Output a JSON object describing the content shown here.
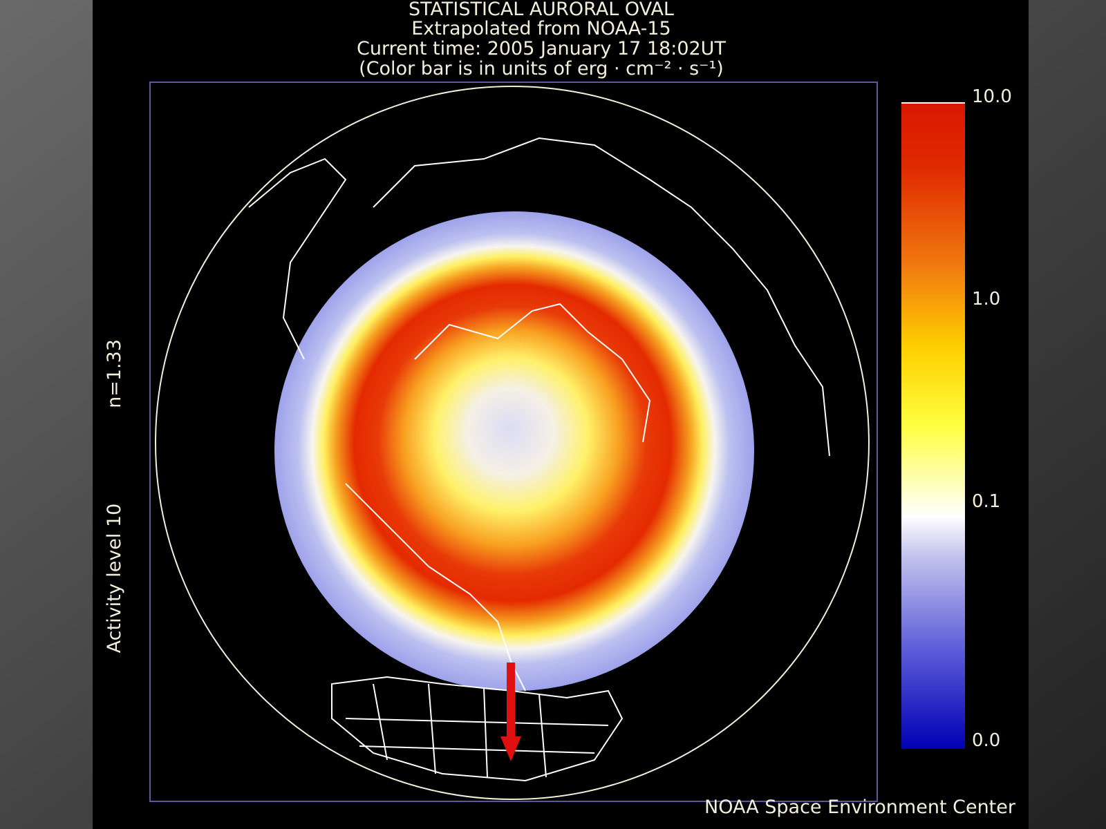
{
  "title": {
    "lines": [
      "STATISTICAL AURORAL OVAL",
      "Extrapolated from NOAA-15",
      "Current time: 2005 January 17 18:02UT",
      "(Color bar is in units of erg · cm⁻² · s⁻¹)"
    ]
  },
  "side_labels": {
    "activity": "Activity level 10",
    "n": "n=1.33"
  },
  "color_bar": {
    "labels": [
      "10.0",
      "1.0",
      "0.1",
      "0.0"
    ]
  },
  "footer": "NOAA Space Environment Center"
}
